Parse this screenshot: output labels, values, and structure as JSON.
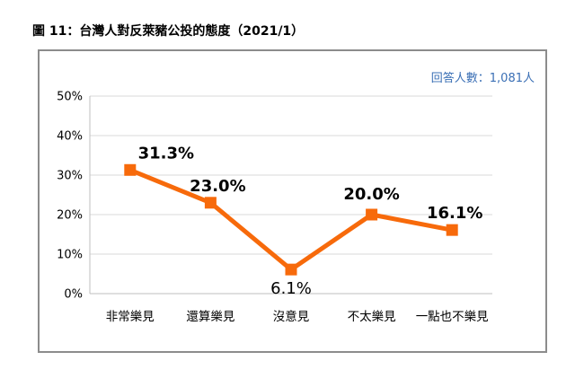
{
  "figure_title": "圖 11：台灣人對反萊豬公投的態度（2021/1）",
  "respondents_label": "回答人數：1,081人",
  "colors": {
    "line": "#f76a0b",
    "marker": "#f76a0b",
    "grid": "#d9d9d9",
    "axis": "#bfbfbf",
    "respondents": "#3a6fb5"
  },
  "chart_data": {
    "type": "line",
    "title": "圖 11：台灣人對反萊豬公投的態度（2021/1）",
    "categories": [
      "非常樂見",
      "還算樂見",
      "沒意見",
      "不太樂見",
      "一點也不樂見"
    ],
    "values": [
      31.3,
      23.0,
      6.1,
      20.0,
      16.1
    ],
    "data_labels": [
      "31.3%",
      "23.0%",
      "6.1%",
      "20.0%",
      "16.1%"
    ],
    "y_ticks": [
      "0%",
      "10%",
      "20%",
      "30%",
      "40%",
      "50%"
    ],
    "ylim": [
      0,
      50
    ],
    "xlabel": "",
    "ylabel": "",
    "grid": true,
    "legend": "none"
  }
}
